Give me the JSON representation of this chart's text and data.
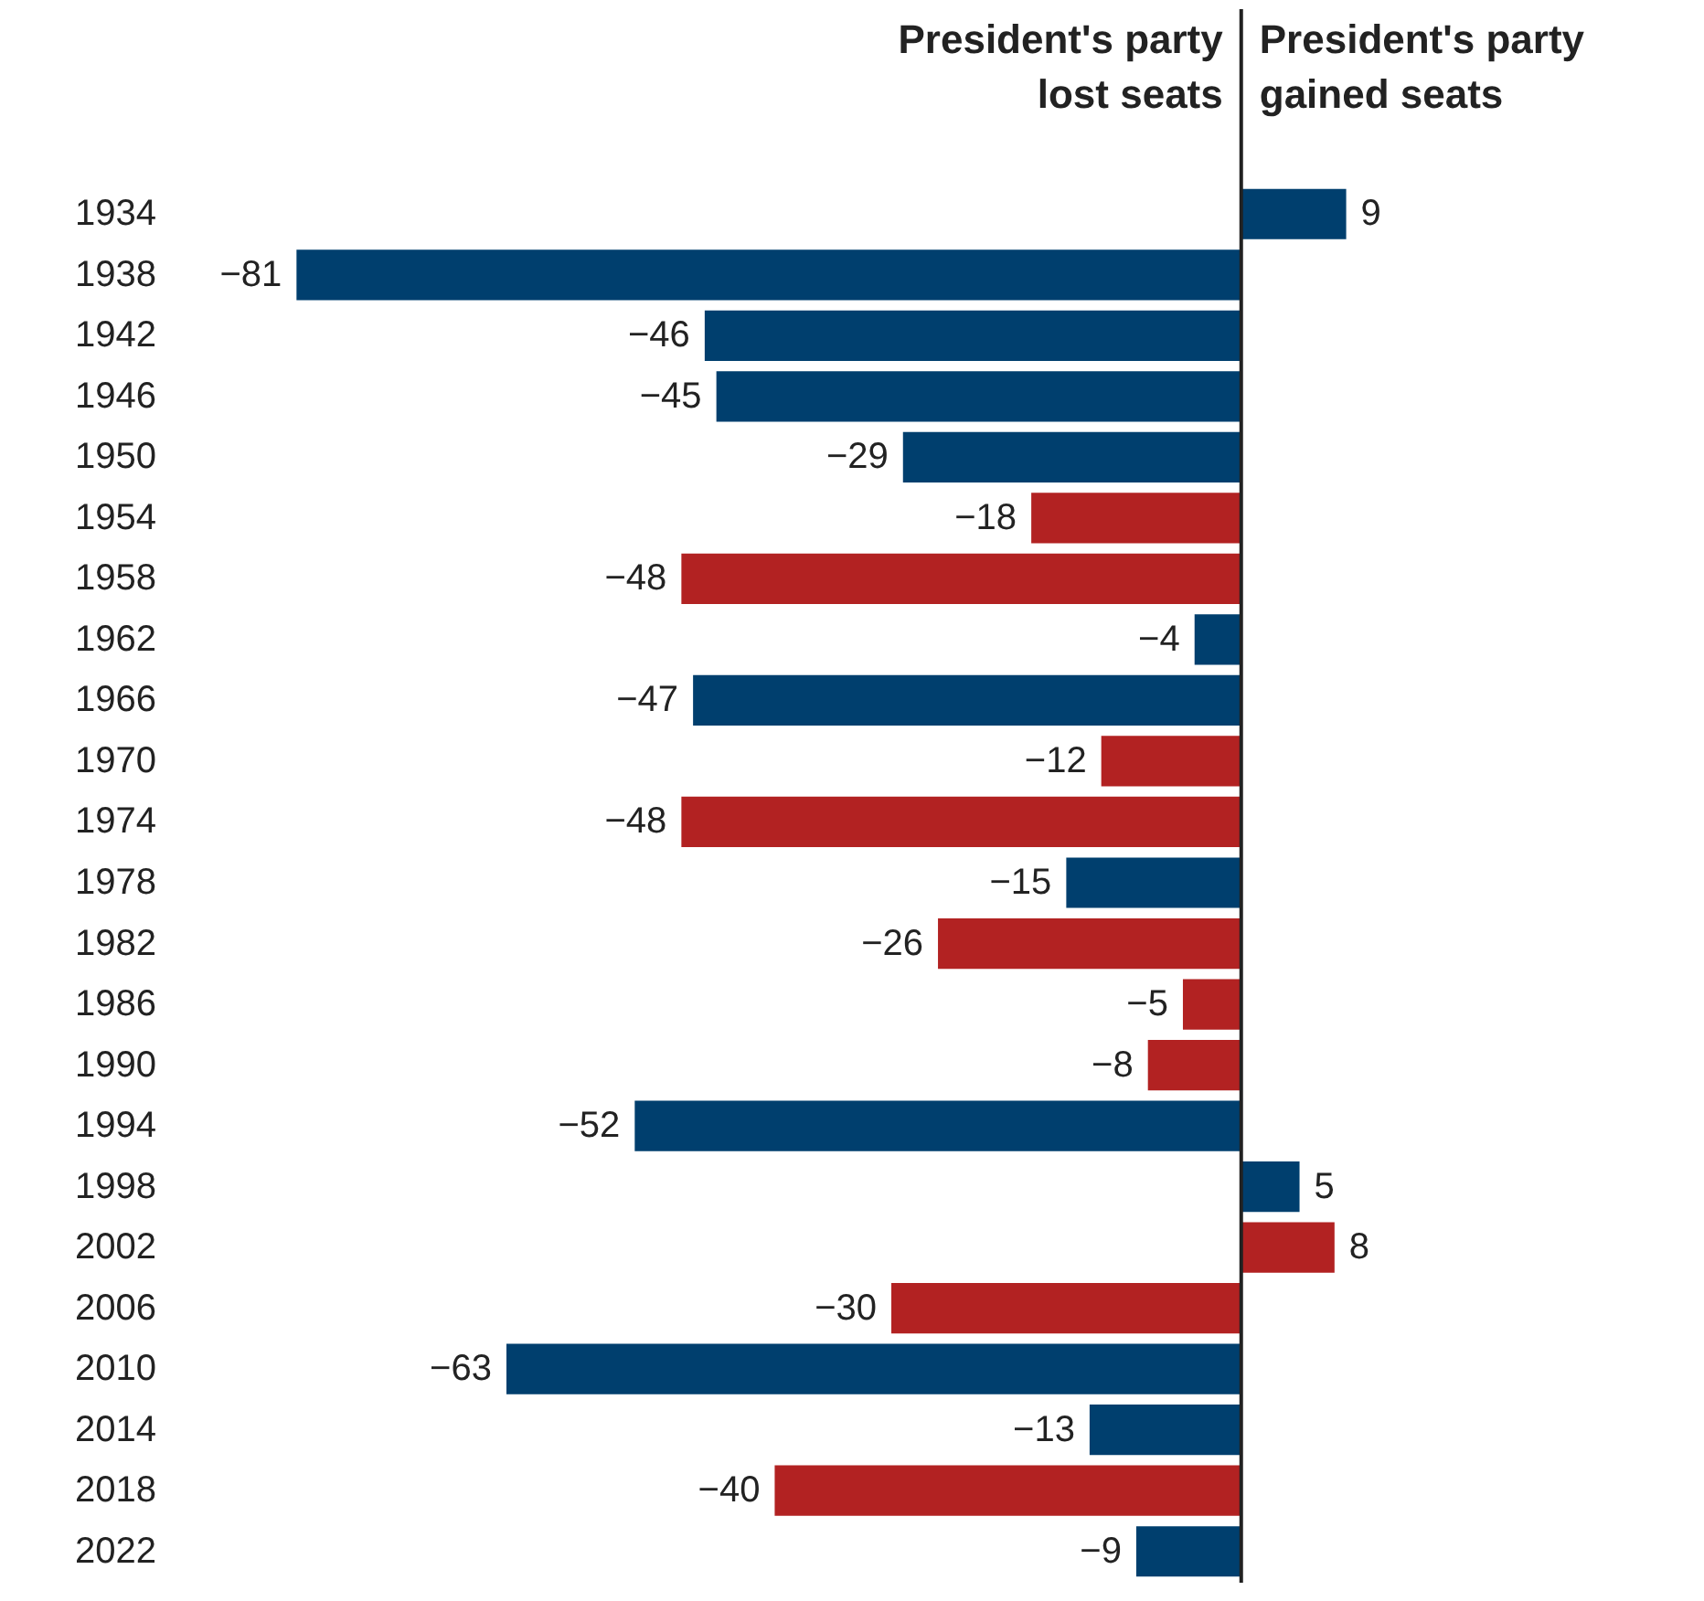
{
  "chart_data": {
    "type": "bar",
    "orientation": "horizontal",
    "categories": [
      "1934",
      "1938",
      "1942",
      "1946",
      "1950",
      "1954",
      "1958",
      "1962",
      "1966",
      "1970",
      "1974",
      "1978",
      "1982",
      "1986",
      "1990",
      "1994",
      "1998",
      "2002",
      "2006",
      "2010",
      "2014",
      "2018",
      "2022"
    ],
    "values": [
      9,
      -81,
      -46,
      -45,
      -29,
      -18,
      -48,
      -4,
      -47,
      -12,
      -48,
      -15,
      -26,
      -5,
      -8,
      -52,
      5,
      8,
      -30,
      -63,
      -13,
      -40,
      -9
    ],
    "colors": [
      "#003f6e",
      "#003f6e",
      "#003f6e",
      "#003f6e",
      "#003f6e",
      "#b22222",
      "#b22222",
      "#003f6e",
      "#003f6e",
      "#b22222",
      "#b22222",
      "#003f6e",
      "#b22222",
      "#b22222",
      "#b22222",
      "#003f6e",
      "#003f6e",
      "#b22222",
      "#b22222",
      "#003f6e",
      "#003f6e",
      "#b22222",
      "#003f6e"
    ],
    "annotations": [
      "President's party lost seats",
      "President's party gained seats"
    ],
    "data_labels": true
  }
}
